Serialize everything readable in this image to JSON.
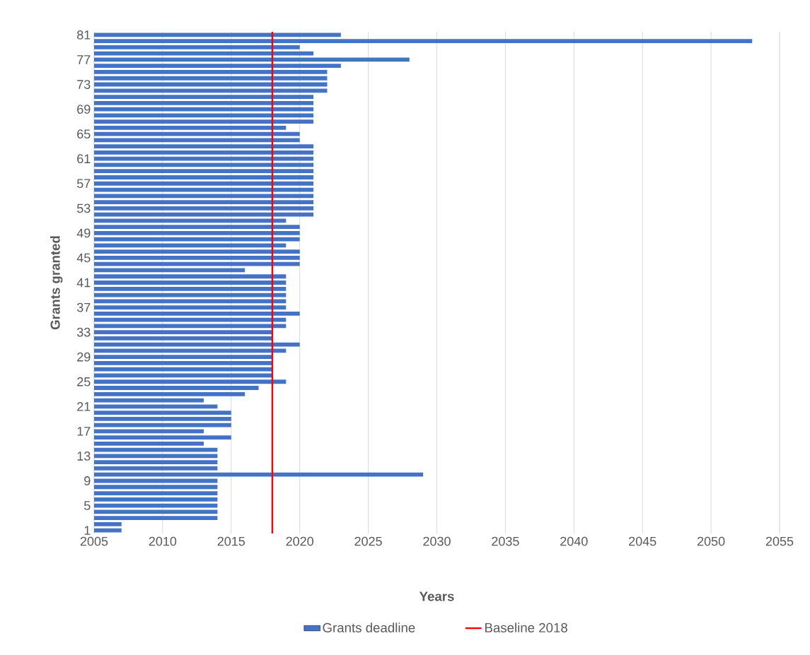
{
  "chart_data": {
    "type": "bar",
    "orientation": "horizontal",
    "xlabel": "Years",
    "ylabel": "Grants granted",
    "categories": [
      "81",
      null,
      null,
      null,
      "77",
      null,
      null,
      null,
      "73",
      null,
      null,
      null,
      "69",
      null,
      null,
      null,
      "65",
      null,
      null,
      null,
      "61",
      null,
      null,
      null,
      "57",
      null,
      null,
      null,
      "53",
      null,
      null,
      null,
      "49",
      null,
      null,
      null,
      "45",
      null,
      null,
      null,
      "41",
      null,
      null,
      null,
      "37",
      null,
      null,
      null,
      "33",
      null,
      null,
      null,
      "29",
      null,
      null,
      null,
      "25",
      null,
      null,
      null,
      "21",
      null,
      null,
      null,
      "17",
      null,
      null,
      null,
      "13",
      null,
      null,
      null,
      "9",
      null,
      null,
      null,
      "5",
      null,
      null,
      null,
      "1"
    ],
    "series": [
      {
        "name": "Grants deadline",
        "color": "#4472c4",
        "values": [
          2023,
          2053,
          2020,
          2021,
          2028,
          2023,
          2022,
          2022,
          2022,
          2022,
          2021,
          2021,
          2021,
          2021,
          2021,
          2019,
          2020,
          2020,
          2021,
          2021,
          2021,
          2021,
          2021,
          2021,
          2021,
          2021,
          2021,
          2021,
          2021,
          2021,
          2019,
          2020,
          2020,
          2020,
          2019,
          2020,
          2020,
          2020,
          2016,
          2019,
          2019,
          2019,
          2019,
          2019,
          2019,
          2020,
          2019,
          2019,
          2018,
          2018,
          2020,
          2019,
          2018,
          2018,
          2018,
          2018,
          2019,
          2017,
          2016,
          2013,
          2014,
          2015,
          2015,
          2015,
          2013,
          2015,
          2013,
          2014,
          2014,
          2014,
          2014,
          2029,
          2014,
          2014,
          2014,
          2014,
          2014,
          2014,
          2014,
          2007,
          2007
        ]
      }
    ],
    "ref_lines": [
      {
        "axis": "x",
        "value": 2018,
        "label": "Baseline 2018",
        "color": "#ff0000"
      }
    ],
    "xlim": [
      2005,
      2055
    ],
    "xticks": [
      2005,
      2010,
      2015,
      2020,
      2025,
      2030,
      2035,
      2040,
      2045,
      2050,
      2055
    ],
    "grid": "x",
    "legend": "bottom"
  }
}
